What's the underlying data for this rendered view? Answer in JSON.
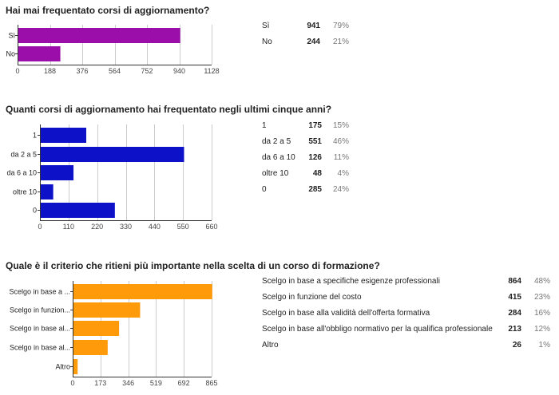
{
  "charts": [
    {
      "title": "Hai mai frequentato corsi di aggiornamento?",
      "color": "#9b0eaa",
      "chart_data": {
        "type": "bar",
        "orientation": "horizontal",
        "categories": [
          "Sì",
          "No"
        ],
        "values": [
          941,
          244
        ],
        "xlim": [
          0,
          1128
        ],
        "xticks": [
          0,
          188,
          376,
          564,
          752,
          940,
          1128
        ],
        "grid": true
      },
      "summary": [
        {
          "label": "Sì",
          "count": "941",
          "pct": "79%"
        },
        {
          "label": "No",
          "count": "244",
          "pct": "21%"
        }
      ]
    },
    {
      "title": "Quanti corsi di aggiornamento hai frequentato negli ultimi cinque anni?",
      "color": "#0d12c9",
      "chart_data": {
        "type": "bar",
        "orientation": "horizontal",
        "categories": [
          "1",
          "da 2 a 5",
          "da 6 a 10",
          "oltre 10",
          "0"
        ],
        "values": [
          175,
          551,
          126,
          48,
          285
        ],
        "xlim": [
          0,
          660
        ],
        "xticks": [
          0,
          110,
          220,
          330,
          440,
          550,
          660
        ],
        "grid": true
      },
      "summary": [
        {
          "label": "1",
          "count": "175",
          "pct": "15%"
        },
        {
          "label": "da 2 a 5",
          "count": "551",
          "pct": "46%"
        },
        {
          "label": "da 6 a 10",
          "count": "126",
          "pct": "11%"
        },
        {
          "label": "oltre 10",
          "count": "48",
          "pct": "4%"
        },
        {
          "label": "0",
          "count": "285",
          "pct": "24%"
        }
      ]
    },
    {
      "title": "Quale è il criterio che ritieni più importante nella scelta di un corso di formazione?",
      "color": "#ff9a0a",
      "chart_data": {
        "type": "bar",
        "orientation": "horizontal",
        "categories": [
          "Scelgo in base a ...",
          "Scelgo in funzion...",
          "Scelgo in base al...",
          "Scelgo in base al...",
          "Altro"
        ],
        "values": [
          864,
          415,
          284,
          213,
          26
        ],
        "xlim": [
          0,
          865
        ],
        "xticks": [
          0,
          173,
          346,
          519,
          692,
          865
        ],
        "grid": true
      },
      "summary": [
        {
          "label": "Scelgo in base a specifiche esigenze professionali",
          "count": "864",
          "pct": "48%"
        },
        {
          "label": "Scelgo in funzione del costo",
          "count": "415",
          "pct": "23%"
        },
        {
          "label": "Scelgo in base alla validità dell'offerta formativa",
          "count": "284",
          "pct": "16%"
        },
        {
          "label": "Scelgo in base all'obbligo normativo per la qualifica professionale",
          "count": "213",
          "pct": "12%"
        },
        {
          "label": "Altro",
          "count": "26",
          "pct": "1%"
        }
      ]
    }
  ]
}
